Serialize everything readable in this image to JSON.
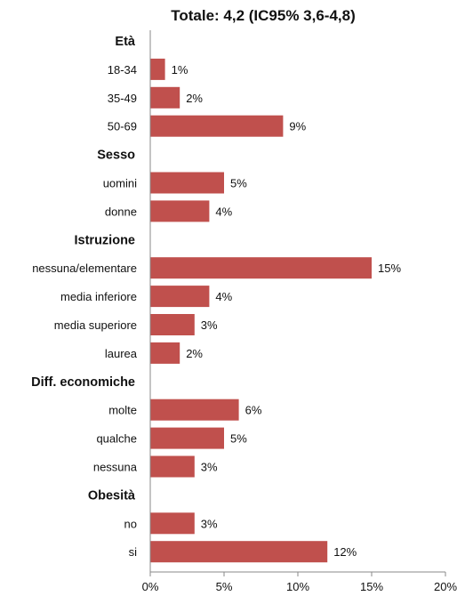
{
  "chart_data": {
    "type": "bar",
    "orientation": "horizontal",
    "title": "Totale: 4,2 (IC95% 3,6-4,8)",
    "xlim": [
      0,
      20
    ],
    "xticks": [
      "0%",
      "5%",
      "10%",
      "15%",
      "20%"
    ],
    "bar_color": "#c0504d",
    "groups": [
      {
        "label": "Età",
        "items": [
          {
            "label": "18-34",
            "value": 1,
            "value_label": "1%"
          },
          {
            "label": "35-49",
            "value": 2,
            "value_label": "2%"
          },
          {
            "label": "50-69",
            "value": 9,
            "value_label": "9%"
          }
        ]
      },
      {
        "label": "Sesso",
        "items": [
          {
            "label": "uomini",
            "value": 5,
            "value_label": "5%"
          },
          {
            "label": "donne",
            "value": 4,
            "value_label": "4%"
          }
        ]
      },
      {
        "label": "Istruzione",
        "items": [
          {
            "label": "nessuna/elementare",
            "value": 15,
            "value_label": "15%"
          },
          {
            "label": "media inferiore",
            "value": 4,
            "value_label": "4%"
          },
          {
            "label": "media superiore",
            "value": 3,
            "value_label": "3%"
          },
          {
            "label": "laurea",
            "value": 2,
            "value_label": "2%"
          }
        ]
      },
      {
        "label": "Diff. economiche",
        "items": [
          {
            "label": "molte",
            "value": 6,
            "value_label": "6%"
          },
          {
            "label": "qualche",
            "value": 5,
            "value_label": "5%"
          },
          {
            "label": "nessuna",
            "value": 3,
            "value_label": "3%"
          }
        ]
      },
      {
        "label": "Obesità",
        "items": [
          {
            "label": "no",
            "value": 3,
            "value_label": "3%"
          },
          {
            "label": "si",
            "value": 12,
            "value_label": "12%"
          }
        ]
      }
    ]
  }
}
